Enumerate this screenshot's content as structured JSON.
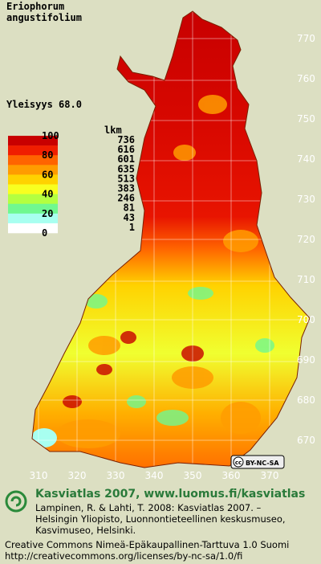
{
  "title": [
    "Eriophorum",
    "angustifolium"
  ],
  "frequency": "Yleisyys  68.0",
  "legend": {
    "scale_labels": [
      100,
      80,
      60,
      40,
      20,
      0
    ],
    "count_header": "lkm",
    "counts": [
      736,
      616,
      601,
      635,
      513,
      383,
      246,
      81,
      43,
      1
    ],
    "colors": [
      "#c80000",
      "#f01e00",
      "#ff6400",
      "#ff9c00",
      "#ffd200",
      "#f8ff20",
      "#b4ff40",
      "#70f890",
      "#a8fff0",
      "#ffffff"
    ]
  },
  "map": {
    "northing_labels": [
      770,
      760,
      750,
      740,
      730,
      720,
      710,
      700,
      690,
      680,
      670
    ],
    "easting_labels": [
      310,
      320,
      330,
      340,
      350,
      360,
      370
    ]
  },
  "license_badge": "BY-NC-SA",
  "footer": {
    "heading": "Kasviatlas 2007, www.luomus.fi/kasviatlas",
    "citation": [
      "Lampinen, R. & Lahti, T. 2008: Kasviatlas 2007. –",
      "Helsingin Yliopisto, Luonnontieteellinen keskusmuseo,",
      "Kasvimuseo, Helsinki."
    ],
    "license": [
      "Creative Commons Nimeä-Epäkaupallinen-Tarttuva 1.0 Suomi",
      "http://creativecommons.org/licenses/by-nc-sa/1.0/fi"
    ]
  }
}
